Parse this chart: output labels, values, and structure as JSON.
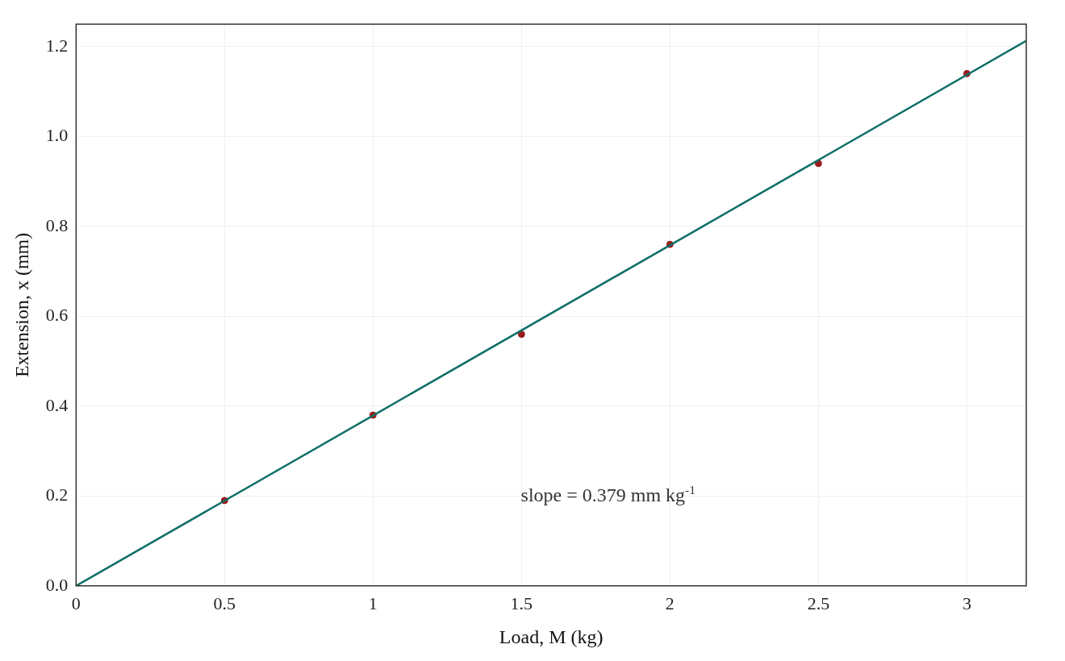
{
  "chart_data": {
    "type": "scatter",
    "xlabel": "Load, M (kg)",
    "ylabel": "Extension, x (mm)",
    "xlim": [
      0,
      3.2
    ],
    "ylim": [
      0,
      1.25
    ],
    "xticks": [
      0,
      0.5,
      1,
      1.5,
      2,
      2.5,
      3
    ],
    "yticks": [
      {
        "value": 0,
        "label": "0.0"
      },
      0.2,
      0.4,
      0.6,
      0.8,
      {
        "value": 1,
        "label": "1.0"
      },
      1.2
    ],
    "grid": true,
    "legend": false,
    "marker": "circle",
    "series": [
      {
        "type": "line",
        "color": "#0e6e66",
        "x": [
          0,
          3.2
        ],
        "values": [
          0,
          1.213
        ],
        "marker": "none",
        "line_style": "solid"
      },
      {
        "type": "scatter",
        "color": "#9b1c1c",
        "x": [
          0.5,
          1,
          1.5,
          2,
          2.5,
          3
        ],
        "values": [
          0.19,
          0.38,
          0.56,
          0.76,
          0.94,
          1.14
        ]
      }
    ],
    "annotations": [
      "slope = 0.379 mm kg$^{-1}$"
    ]
  }
}
